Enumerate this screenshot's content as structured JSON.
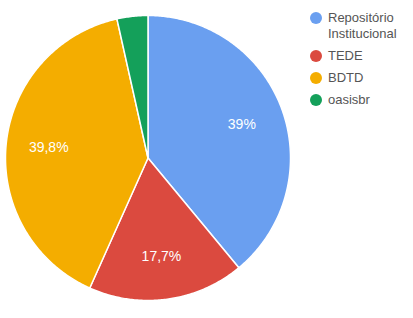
{
  "chart_data": {
    "type": "pie",
    "categories": [
      "Repositório Institucional",
      "TEDE",
      "BDTD",
      "oasisbr"
    ],
    "values": [
      39,
      17.7,
      39.8,
      3.5
    ],
    "value_labels": [
      "39%",
      "17,7%",
      "39,8%",
      null
    ],
    "colors": [
      "#6a9ff0",
      "#db4a3f",
      "#f4ad00",
      "#14a05a"
    ],
    "data_labels": true,
    "legend": "top-right"
  }
}
